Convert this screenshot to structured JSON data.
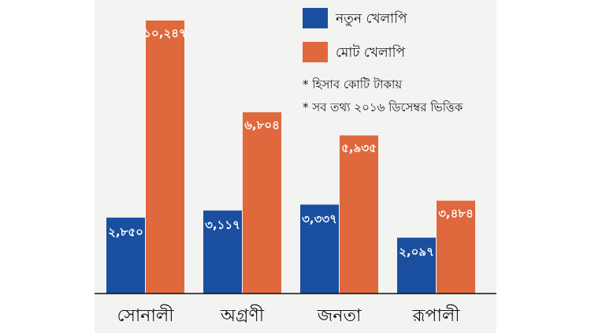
{
  "colors": {
    "new_default": "#1a4fa0",
    "total_default": "#e0683d",
    "background": "#f3f3f1"
  },
  "legend": {
    "position": "top-right",
    "items": [
      {
        "label": "নতুন খেলাপি",
        "color": "#1a4fa0"
      },
      {
        "label": "মোট খেলাপি",
        "color": "#e0683d"
      }
    ]
  },
  "notes": [
    "* হিসাব কোটি টাকায়",
    "* সব তথ্য ২০১৬ ডিসেম্বর ভিত্তিক"
  ],
  "chart_data": {
    "type": "bar",
    "categories": [
      "সোনালী",
      "অগ্রণী",
      "জনতা",
      "রূপালী"
    ],
    "series": [
      {
        "name": "নতুন খেলাপি",
        "color": "#1a4fa0",
        "values": [
          2850,
          3117,
          3337,
          2097
        ],
        "labels": [
          "২,৮৫০",
          "৩,১১৭",
          "৩,৩৩৭",
          "২,০৯৭"
        ]
      },
      {
        "name": "মোট খেলাপি",
        "color": "#e0683d",
        "values": [
          10247,
          6804,
          5935,
          3484
        ],
        "labels": [
          "১০,২৪৭",
          "৬,৮০৪",
          "৫,৯৩৫",
          "৩,৪৮৪"
        ]
      }
    ],
    "ylim": [
      0,
      10247
    ],
    "grid": false,
    "title": "",
    "xlabel": "",
    "ylabel": ""
  }
}
